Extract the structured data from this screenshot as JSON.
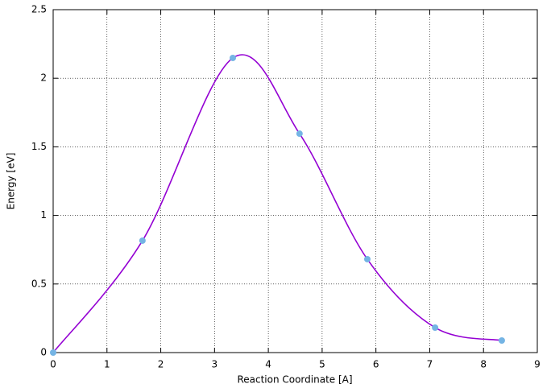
{
  "chart_data": {
    "type": "line",
    "x_label": "Reaction Coordinate [A]",
    "y_label": "Energy [eV]",
    "x": [
      0,
      1.66,
      3.34,
      4.58,
      5.84,
      7.1,
      8.34
    ],
    "series": [
      {
        "color": "#9400d3",
        "marker_color": "#74b4e4",
        "values": [
          0,
          0.816,
          2.148,
          1.596,
          0.681,
          0.182,
          0.088
        ]
      }
    ],
    "smooth": true,
    "xlim": [
      0,
      9
    ],
    "xticks": [
      0,
      1,
      2,
      3,
      4,
      5,
      6,
      7,
      8,
      9
    ],
    "ylim": [
      0,
      2.5
    ],
    "yticks": [
      0,
      0.5,
      1,
      1.5,
      2,
      2.5
    ],
    "grid": true
  }
}
